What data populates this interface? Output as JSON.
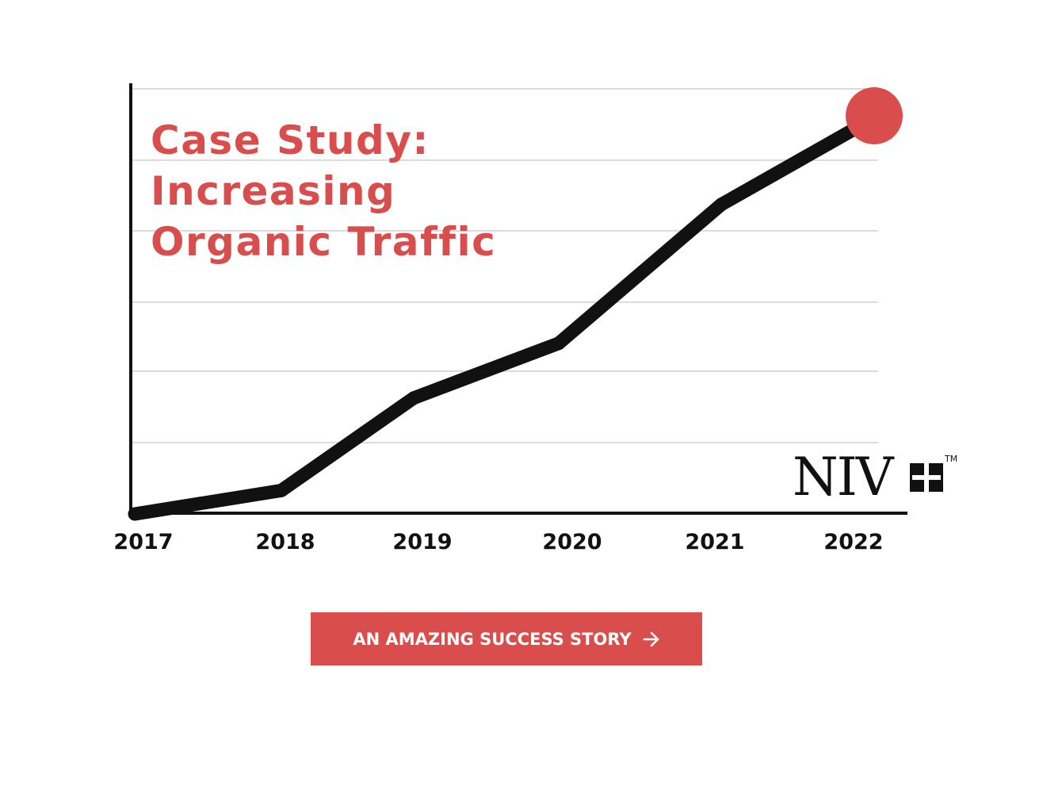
{
  "chart_data": {
    "type": "line",
    "title": "Case Study: Increasing Organic Traffic",
    "title_lines": [
      "Case Study:",
      "Increasing",
      "Organic Traffic"
    ],
    "categories": [
      "2017",
      "2018",
      "2019",
      "2020",
      "2021",
      "2022"
    ],
    "series": [
      {
        "values": [
          0,
          3.3,
          16.3,
          24,
          43.5,
          55.5
        ]
      }
    ],
    "ylim": [
      0,
      60
    ],
    "grid": true,
    "legend": "none",
    "line_color": "#111111",
    "end_marker_color": "#d94d4d"
  },
  "brand": {
    "wordmark": "NIV",
    "trademark": "TM",
    "icon": "cross-block-icon"
  },
  "cta": {
    "label": "AN AMAZING SUCCESS STORY",
    "icon": "arrow-right-icon"
  },
  "colors": {
    "accent": "#d94d4d",
    "grid": "#dcdcdc",
    "axis": "#111111"
  }
}
